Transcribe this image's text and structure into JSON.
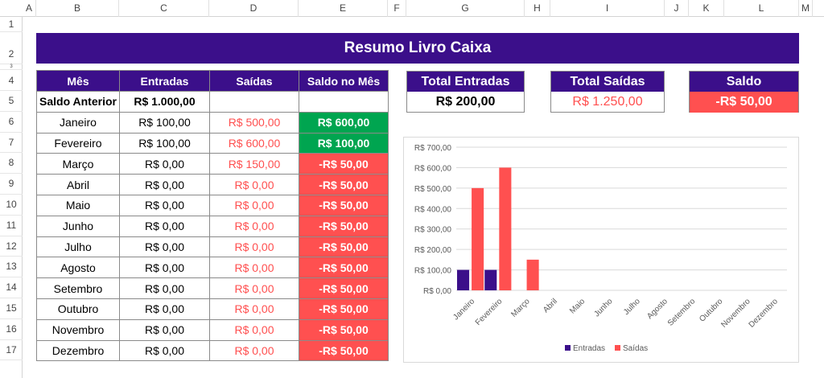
{
  "columns": [
    "A",
    "B",
    "C",
    "D",
    "E",
    "F",
    "G",
    "H",
    "I",
    "J",
    "K",
    "L",
    "M"
  ],
  "rows": [
    "1",
    "2",
    "3",
    "4",
    "5",
    "6",
    "7",
    "8",
    "9",
    "10",
    "11",
    "12",
    "13",
    "14",
    "15",
    "16",
    "17"
  ],
  "title": "Resumo Livro Caixa",
  "table": {
    "headers": [
      "Mês",
      "Entradas",
      "Saídas",
      "Saldo no Mês"
    ],
    "opening": {
      "label": "Saldo Anterior",
      "value": "R$ 1.000,00"
    },
    "rows": [
      {
        "mes": "Janeiro",
        "entradas": "R$ 100,00",
        "saidas": "R$ 500,00",
        "saldo": "R$ 600,00",
        "status": "positive"
      },
      {
        "mes": "Fevereiro",
        "entradas": "R$ 100,00",
        "saidas": "R$ 600,00",
        "saldo": "R$ 100,00",
        "status": "positive"
      },
      {
        "mes": "Março",
        "entradas": "R$ 0,00",
        "saidas": "R$ 150,00",
        "saldo": "-R$ 50,00",
        "status": "negative"
      },
      {
        "mes": "Abril",
        "entradas": "R$ 0,00",
        "saidas": "R$ 0,00",
        "saldo": "-R$ 50,00",
        "status": "negative"
      },
      {
        "mes": "Maio",
        "entradas": "R$ 0,00",
        "saidas": "R$ 0,00",
        "saldo": "-R$ 50,00",
        "status": "negative"
      },
      {
        "mes": "Junho",
        "entradas": "R$ 0,00",
        "saidas": "R$ 0,00",
        "saldo": "-R$ 50,00",
        "status": "negative"
      },
      {
        "mes": "Julho",
        "entradas": "R$ 0,00",
        "saidas": "R$ 0,00",
        "saldo": "-R$ 50,00",
        "status": "negative"
      },
      {
        "mes": "Agosto",
        "entradas": "R$ 0,00",
        "saidas": "R$ 0,00",
        "saldo": "-R$ 50,00",
        "status": "negative"
      },
      {
        "mes": "Setembro",
        "entradas": "R$ 0,00",
        "saidas": "R$ 0,00",
        "saldo": "-R$ 50,00",
        "status": "negative"
      },
      {
        "mes": "Outubro",
        "entradas": "R$ 0,00",
        "saidas": "R$ 0,00",
        "saldo": "-R$ 50,00",
        "status": "negative"
      },
      {
        "mes": "Novembro",
        "entradas": "R$ 0,00",
        "saidas": "R$ 0,00",
        "saldo": "-R$ 50,00",
        "status": "negative"
      },
      {
        "mes": "Dezembro",
        "entradas": "R$ 0,00",
        "saidas": "R$ 0,00",
        "saldo": "-R$ 50,00",
        "status": "negative"
      }
    ]
  },
  "summary": {
    "total_entradas": {
      "label": "Total Entradas",
      "value": "R$ 200,00"
    },
    "total_saidas": {
      "label": "Total Saídas",
      "value": "R$ 1.250,00"
    },
    "saldo": {
      "label": "Saldo",
      "value": "-R$ 50,00"
    }
  },
  "colors": {
    "header": "#3b0f8a",
    "positive": "#00a550",
    "negative": "#ff5050",
    "saidas_text": "#ff4f4f"
  },
  "chart_data": {
    "type": "bar",
    "categories": [
      "Janeiro",
      "Fevereiro",
      "Março",
      "Abril",
      "Maio",
      "Junho",
      "Julho",
      "Agosto",
      "Setembro",
      "Outubro",
      "Novembro",
      "Dezembro"
    ],
    "series": [
      {
        "name": "Entradas",
        "color": "#3b0f8a",
        "values": [
          100,
          100,
          0,
          0,
          0,
          0,
          0,
          0,
          0,
          0,
          0,
          0
        ]
      },
      {
        "name": "Saídas",
        "color": "#ff5050",
        "values": [
          500,
          600,
          150,
          0,
          0,
          0,
          0,
          0,
          0,
          0,
          0,
          0
        ]
      }
    ],
    "yticks": [
      "R$ 0,00",
      "R$ 100,00",
      "R$ 200,00",
      "R$ 300,00",
      "R$ 400,00",
      "R$ 500,00",
      "R$ 600,00",
      "R$ 700,00"
    ],
    "ylim": [
      0,
      700
    ],
    "grid": true,
    "legend": "bottom"
  }
}
